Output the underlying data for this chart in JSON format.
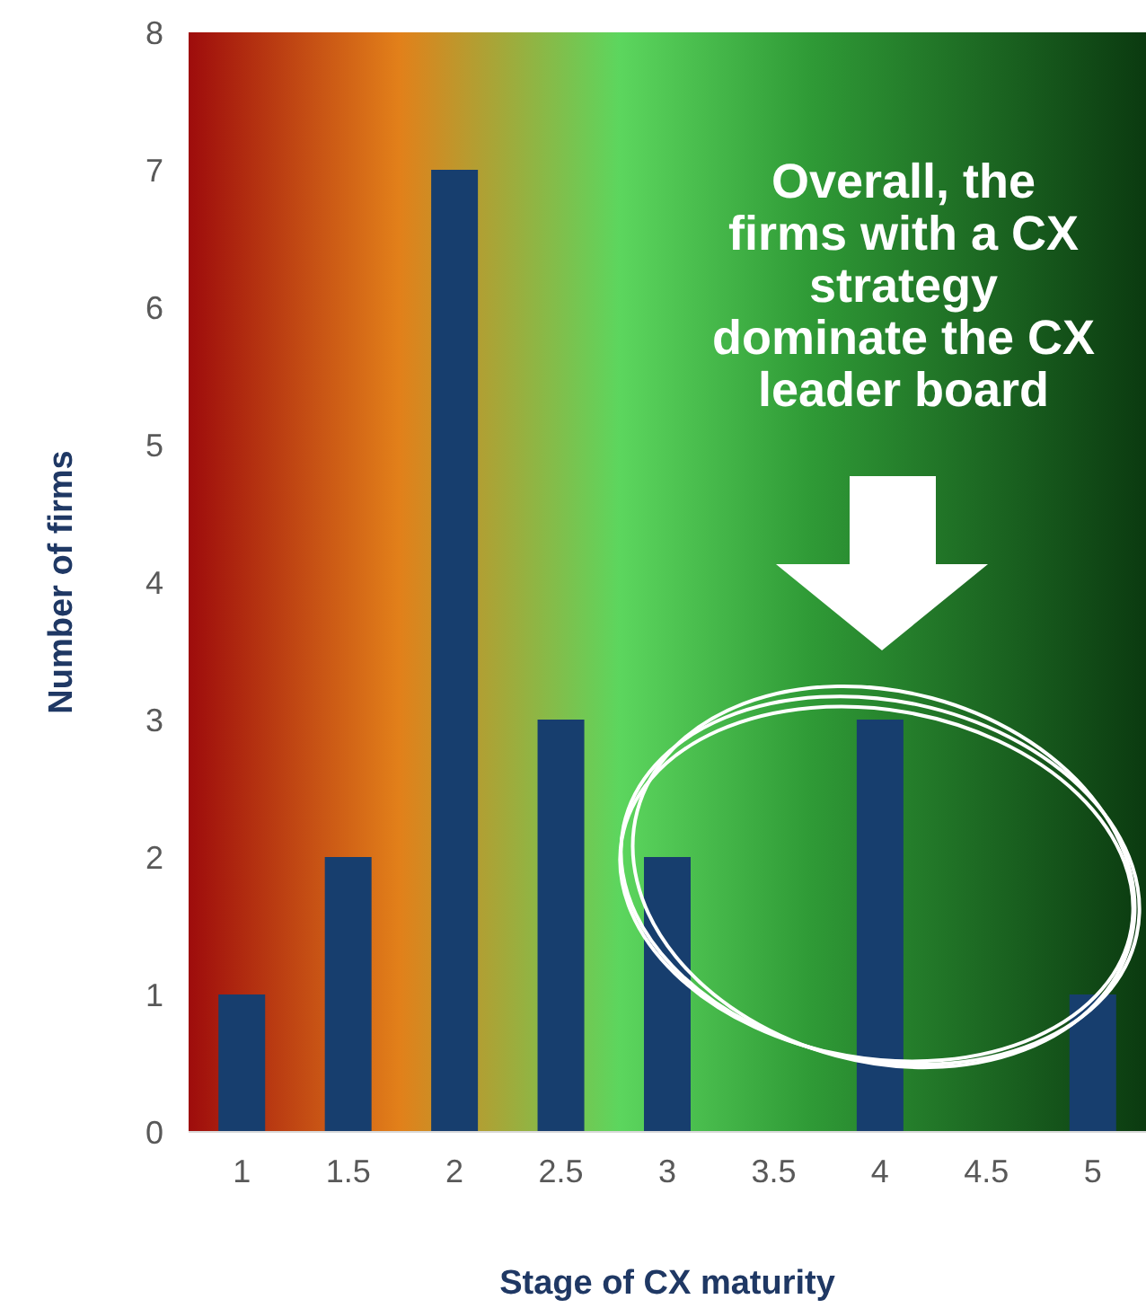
{
  "chart_data": {
    "type": "bar",
    "xlabel": "Stage of CX maturity",
    "ylabel": "Number of firms",
    "categories": [
      "1",
      "1.5",
      "2",
      "2.5",
      "3",
      "3.5",
      "4",
      "4.5",
      "5"
    ],
    "values": [
      1,
      2,
      7,
      3,
      2,
      0,
      3,
      0,
      1
    ],
    "color": "#173e6e",
    "ylim": [
      0,
      8
    ],
    "yticks": [
      0,
      1,
      2,
      3,
      4,
      5,
      6,
      7,
      8
    ],
    "annotations": [
      "Overall, the firms with a CX strategy dominate the CX leader board"
    ]
  }
}
